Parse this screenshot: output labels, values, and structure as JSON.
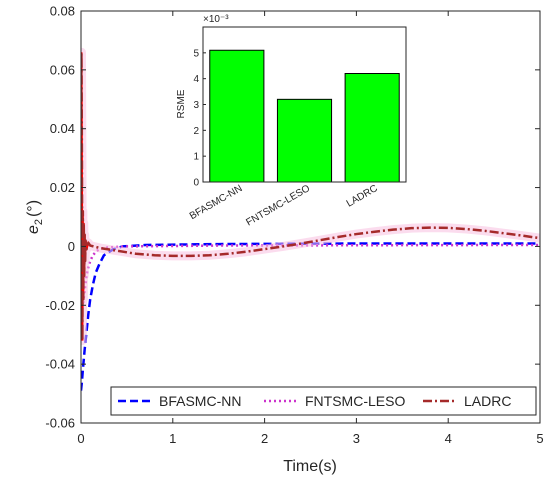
{
  "chart_data": [
    {
      "type": "line",
      "title": "",
      "xlabel": "Time(s)",
      "ylabel": "e",
      "ylabel_subscript": "2",
      "ylabel_unit": "(°)",
      "xlim": [
        0,
        5
      ],
      "ylim": [
        -0.06,
        0.08
      ],
      "x_ticks": [
        "0",
        "1",
        "2",
        "3",
        "4",
        "5"
      ],
      "y_ticks": [
        "-0.06",
        "-0.04",
        "-0.02",
        "0",
        "0.02",
        "0.04",
        "0.06",
        "0.08"
      ],
      "grid": false,
      "legend_position": "bottom",
      "series": [
        {
          "name": "BFASMC-NN",
          "color": "#0000ff",
          "dash": "dashed",
          "points": [
            [
              0,
              -0.049
            ],
            [
              0.01,
              -0.046
            ],
            [
              0.02,
              -0.042
            ],
            [
              0.04,
              -0.035
            ],
            [
              0.06,
              -0.029
            ],
            [
              0.08,
              -0.023
            ],
            [
              0.1,
              -0.018
            ],
            [
              0.13,
              -0.013
            ],
            [
              0.16,
              -0.009
            ],
            [
              0.2,
              -0.006
            ],
            [
              0.25,
              -0.003
            ],
            [
              0.3,
              -0.002
            ],
            [
              0.35,
              -0.001
            ],
            [
              0.45,
              0.0
            ],
            [
              0.7,
              0.0005
            ],
            [
              1.5,
              0.0008
            ],
            [
              3,
              0.001
            ],
            [
              5,
              0.001
            ]
          ]
        },
        {
          "name": "FNTSMC-LESO",
          "color": "#cc33cc",
          "dash": "dotted",
          "points": [
            [
              0,
              -0.026
            ],
            [
              0.02,
              -0.02
            ],
            [
              0.04,
              -0.015
            ],
            [
              0.06,
              -0.01
            ],
            [
              0.08,
              -0.007
            ],
            [
              0.1,
              -0.005
            ],
            [
              0.13,
              -0.003
            ],
            [
              0.17,
              -0.0015
            ],
            [
              0.22,
              -0.0007
            ],
            [
              0.3,
              -0.0003
            ],
            [
              0.5,
              0.0
            ],
            [
              1.5,
              0.0003
            ],
            [
              3,
              0.0004
            ],
            [
              5,
              0.0005
            ]
          ]
        },
        {
          "name": "LADRC",
          "color": "#a52a2a",
          "dash": "dashdot",
          "points": [
            [
              0,
              0.045
            ],
            [
              0.005,
              0.066
            ],
            [
              0.01,
              0.03
            ],
            [
              0.015,
              -0.032
            ],
            [
              0.02,
              0.012
            ],
            [
              0.025,
              -0.018
            ],
            [
              0.03,
              0.008
            ],
            [
              0.035,
              -0.01
            ],
            [
              0.04,
              0.004
            ],
            [
              0.045,
              -0.005
            ],
            [
              0.05,
              0.002
            ],
            [
              0.06,
              -0.001
            ],
            [
              0.08,
              0.0012
            ],
            [
              0.1,
              0.0003
            ],
            [
              0.2,
              -0.0005
            ],
            [
              0.4,
              -0.0015
            ],
            [
              0.6,
              -0.0025
            ],
            [
              0.8,
              -0.003
            ],
            [
              1.0,
              -0.0032
            ],
            [
              1.2,
              -0.0032
            ],
            [
              1.4,
              -0.003
            ],
            [
              1.6,
              -0.0025
            ],
            [
              1.8,
              -0.0018
            ],
            [
              2.0,
              -0.0009
            ],
            [
              2.2,
              0.0
            ],
            [
              2.4,
              0.001
            ],
            [
              2.6,
              0.0021
            ],
            [
              2.8,
              0.0032
            ],
            [
              3.0,
              0.0042
            ],
            [
              3.2,
              0.005
            ],
            [
              3.4,
              0.0057
            ],
            [
              3.6,
              0.0062
            ],
            [
              3.8,
              0.0064
            ],
            [
              4.0,
              0.0063
            ],
            [
              4.2,
              0.0059
            ],
            [
              4.4,
              0.0053
            ],
            [
              4.6,
              0.0045
            ],
            [
              4.8,
              0.0037
            ],
            [
              5.0,
              0.0028
            ]
          ]
        }
      ]
    },
    {
      "type": "bar",
      "title": "",
      "xlabel": "",
      "ylabel": "RSME",
      "exponent_label": "×10⁻³",
      "categories": [
        "BFASMC-NN",
        "FNTSMC-LESO",
        "LADRC"
      ],
      "values": [
        5.1,
        3.2,
        4.2
      ],
      "ylim": [
        0,
        6
      ],
      "y_ticks": [
        "0",
        "1",
        "2",
        "3",
        "4",
        "5"
      ],
      "bar_color": "#00ff00",
      "grid": false
    }
  ]
}
